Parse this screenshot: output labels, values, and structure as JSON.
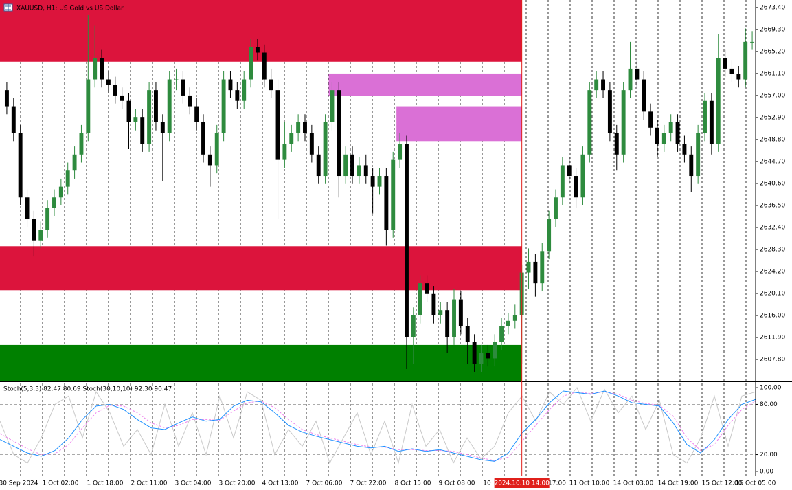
{
  "chart_data": {
    "type": "candlestick",
    "title": "XAUUSD, H1:  US Gold vs US Dollar",
    "ylim": [
      2603.7,
      2674.8
    ],
    "yticks": [
      {
        "value": 2673.4,
        "label": "2673.40"
      },
      {
        "value": 2669.3,
        "label": "2669.30"
      },
      {
        "value": 2665.2,
        "label": "2665.20"
      },
      {
        "value": 2661.1,
        "label": "2661.10"
      },
      {
        "value": 2657,
        "label": "2657.00"
      },
      {
        "value": 2652.9,
        "label": "2652.90"
      },
      {
        "value": 2648.8,
        "label": "2648.80"
      },
      {
        "value": 2644.7,
        "label": "2644.70"
      },
      {
        "value": 2640.6,
        "label": "2640.60"
      },
      {
        "value": 2636.5,
        "label": "2636.50"
      },
      {
        "value": 2632.4,
        "label": "2632.40"
      },
      {
        "value": 2628.3,
        "label": "2628.30"
      },
      {
        "value": 2624.2,
        "label": "2624.20"
      },
      {
        "value": 2620.1,
        "label": "2620.10"
      },
      {
        "value": 2616,
        "label": "2616.00"
      },
      {
        "value": 2611.9,
        "label": "2611.90"
      },
      {
        "value": 2607.8,
        "label": "2607.80"
      }
    ],
    "x_labels": [
      "30 Sep 2024",
      "1 Oct 02:00",
      "1 Oct 18:00",
      "2 Oct 11:00",
      "3 Oct 04:00",
      "3 Oct 20:00",
      "4 Oct 13:00",
      "7 Oct 06:00",
      "7 Oct 22:00",
      "8 Oct 15:00",
      "9 Oct 08:00",
      "10",
      "17:00",
      "11 Oct 10:00",
      "14 Oct 03:00",
      "14 Oct 19:00",
      "15 Oct 12:00",
      "16 Oct 05:00"
    ],
    "cursor": {
      "index": 76,
      "label": "2024.10.10 14:00",
      "color": "#e0201b"
    },
    "bull_color": "#2e8b3e",
    "bear_color": "#000000",
    "zones": [
      {
        "top": 2674.8,
        "bottom": 2663.3,
        "start": 0,
        "color": "#dc143c"
      },
      {
        "top": 2661.1,
        "bottom": 2656.9,
        "start": 48,
        "color": "#da70d6"
      },
      {
        "top": 2655.0,
        "bottom": 2648.5,
        "start": 58,
        "color": "#da70d6"
      },
      {
        "top": 2628.9,
        "bottom": 2620.7,
        "start": 0,
        "color": "#dc143c"
      },
      {
        "top": 2610.5,
        "bottom": 2603.7,
        "start": 0,
        "color": "#008000"
      }
    ],
    "ohlc": [
      [
        2658,
        2659.5,
        2653.5,
        2655
      ],
      [
        2655,
        2656.5,
        2648.5,
        2650
      ],
      [
        2650,
        2651.5,
        2636.5,
        2638
      ],
      [
        2638,
        2639.5,
        2632.5,
        2634
      ],
      [
        2634,
        2635.5,
        2627,
        2630
      ],
      [
        2630,
        2633.5,
        2628.5,
        2632
      ],
      [
        2632,
        2637.5,
        2630.5,
        2636
      ],
      [
        2636,
        2639.5,
        2634.5,
        2638
      ],
      [
        2638,
        2641.5,
        2636.5,
        2640
      ],
      [
        2640,
        2644.5,
        2638.5,
        2643
      ],
      [
        2643,
        2647.5,
        2641.5,
        2646
      ],
      [
        2646,
        2651.5,
        2644.5,
        2650
      ],
      [
        2650,
        2672,
        2648.5,
        2660
      ],
      [
        2660,
        2670,
        2658.5,
        2664
      ],
      [
        2664,
        2665.5,
        2658.5,
        2660
      ],
      [
        2660,
        2661.5,
        2657.5,
        2659
      ],
      [
        2659,
        2660.5,
        2655.5,
        2657
      ],
      [
        2657,
        2658.5,
        2654.5,
        2656
      ],
      [
        2656,
        2657.5,
        2647,
        2652
      ],
      [
        2652,
        2654.5,
        2650.5,
        2653
      ],
      [
        2653,
        2654.5,
        2646.5,
        2648
      ],
      [
        2648,
        2659.5,
        2646.5,
        2658
      ],
      [
        2658,
        2659.5,
        2650.5,
        2652
      ],
      [
        2652,
        2653.5,
        2641,
        2650
      ],
      [
        2650,
        2661.5,
        2648.5,
        2660
      ],
      [
        2660,
        2662,
        2658,
        2660
      ],
      [
        2660,
        2661.5,
        2655.5,
        2657
      ],
      [
        2657,
        2658.5,
        2653.5,
        2655
      ],
      [
        2655,
        2656.5,
        2650.5,
        2652
      ],
      [
        2652,
        2653.5,
        2644.5,
        2646
      ],
      [
        2646,
        2647.5,
        2640,
        2644
      ],
      [
        2644,
        2651.5,
        2642.5,
        2650
      ],
      [
        2650,
        2661.5,
        2648.5,
        2660
      ],
      [
        2660,
        2661.5,
        2656.5,
        2658
      ],
      [
        2658,
        2659.5,
        2654.5,
        2656
      ],
      [
        2656,
        2661.5,
        2654.5,
        2660
      ],
      [
        2660,
        2667.5,
        2658.5,
        2666
      ],
      [
        2666,
        2667.5,
        2663.5,
        2665
      ],
      [
        2665,
        2666.5,
        2658.5,
        2660
      ],
      [
        2660,
        2662,
        2656.5,
        2658
      ],
      [
        2658,
        2660,
        2634,
        2645
      ],
      [
        2645,
        2652,
        2643.5,
        2648
      ],
      [
        2648,
        2651.5,
        2646.5,
        2650
      ],
      [
        2650,
        2653.5,
        2648.5,
        2652
      ],
      [
        2652,
        2653.5,
        2648.5,
        2650
      ],
      [
        2650,
        2651.5,
        2644.5,
        2646
      ],
      [
        2646,
        2647.5,
        2640.5,
        2642
      ],
      [
        2642,
        2653.5,
        2640.5,
        2652
      ],
      [
        2652,
        2659.5,
        2650.5,
        2658
      ],
      [
        2658,
        2659.5,
        2638,
        2642
      ],
      [
        2642,
        2647.5,
        2640.5,
        2646
      ],
      [
        2646,
        2647.5,
        2640.5,
        2642
      ],
      [
        2642,
        2645.5,
        2640.5,
        2644
      ],
      [
        2644,
        2646,
        2640.5,
        2642
      ],
      [
        2642,
        2643.5,
        2635,
        2640
      ],
      [
        2640,
        2643.5,
        2638.5,
        2642
      ],
      [
        2642,
        2643.5,
        2629,
        2632
      ],
      [
        2632,
        2646.5,
        2630.5,
        2645
      ],
      [
        2645,
        2650,
        2643.5,
        2648
      ],
      [
        2648,
        2649.5,
        2606,
        2612
      ],
      [
        2612,
        2617.5,
        2607,
        2616
      ],
      [
        2616,
        2623.5,
        2614.5,
        2622
      ],
      [
        2622,
        2623.5,
        2618.5,
        2620
      ],
      [
        2620,
        2621.5,
        2614.5,
        2616
      ],
      [
        2616,
        2618.5,
        2614.5,
        2617
      ],
      [
        2617,
        2618.5,
        2609,
        2612
      ],
      [
        2612,
        2621,
        2610.5,
        2619
      ],
      [
        2619,
        2620.5,
        2612.5,
        2614
      ],
      [
        2614,
        2615.5,
        2607,
        2611
      ],
      [
        2611,
        2612.5,
        2605.5,
        2607
      ],
      [
        2607,
        2610.5,
        2605.5,
        2609
      ],
      [
        2609,
        2610.5,
        2606.5,
        2608
      ],
      [
        2608,
        2612.5,
        2606.5,
        2611
      ],
      [
        2611,
        2615.5,
        2609.5,
        2614
      ],
      [
        2614,
        2616.5,
        2612.5,
        2615
      ],
      [
        2615,
        2618,
        2613.5,
        2616
      ],
      [
        2616,
        2625.5,
        2607,
        2624
      ],
      [
        2624,
        2628.5,
        2621,
        2626
      ],
      [
        2626,
        2627.5,
        2619.5,
        2622
      ],
      [
        2622,
        2629.5,
        2620.5,
        2628
      ],
      [
        2628,
        2635.5,
        2626.5,
        2634
      ],
      [
        2634,
        2639.5,
        2632.5,
        2638
      ],
      [
        2638,
        2645.5,
        2636.5,
        2644
      ],
      [
        2644,
        2645.5,
        2640.5,
        2642
      ],
      [
        2642,
        2643.5,
        2636,
        2638
      ],
      [
        2638,
        2647.5,
        2636.5,
        2646
      ],
      [
        2646,
        2659.5,
        2644.5,
        2658
      ],
      [
        2658,
        2661.5,
        2656.5,
        2660
      ],
      [
        2660,
        2661.5,
        2656.5,
        2658
      ],
      [
        2658,
        2659.5,
        2648.5,
        2650
      ],
      [
        2650,
        2651.5,
        2643,
        2646
      ],
      [
        2646,
        2659.5,
        2644.5,
        2658
      ],
      [
        2658,
        2667,
        2656.5,
        2662
      ],
      [
        2662,
        2663.5,
        2658.5,
        2660
      ],
      [
        2660,
        2661.5,
        2652.5,
        2654
      ],
      [
        2654,
        2655.5,
        2649.5,
        2651
      ],
      [
        2651,
        2652.5,
        2645.5,
        2648
      ],
      [
        2648,
        2651.5,
        2646.5,
        2650
      ],
      [
        2650,
        2653.5,
        2648.5,
        2652
      ],
      [
        2652,
        2653.5,
        2646.5,
        2648
      ],
      [
        2648,
        2649.5,
        2644.5,
        2646
      ],
      [
        2646,
        2647.5,
        2639,
        2642
      ],
      [
        2642,
        2651.5,
        2640.5,
        2650
      ],
      [
        2650,
        2657.5,
        2648.5,
        2656
      ],
      [
        2656,
        2657.5,
        2646,
        2648
      ],
      [
        2648,
        2668.5,
        2646.5,
        2664
      ],
      [
        2664,
        2665.5,
        2660.5,
        2662
      ],
      [
        2662,
        2663.5,
        2659.5,
        2661
      ],
      [
        2661,
        2662.5,
        2658.5,
        2660
      ],
      [
        2660,
        2669.5,
        2658.5,
        2667
      ],
      [
        2667,
        2669,
        2665.5,
        2667
      ]
    ],
    "indicator": {
      "label": "Stoch(5,3,3) 82.47 80.69 Stoch(30,10,10) 92.30 90.47",
      "ylim": [
        -5,
        105
      ],
      "yticks": [
        {
          "value": 100,
          "label": "100.00"
        },
        {
          "value": 80,
          "label": "80.00"
        },
        {
          "value": 20,
          "label": "20.00"
        },
        {
          "value": 0,
          "label": "0.00"
        }
      ],
      "levels": [
        80,
        20
      ],
      "series": [
        {
          "color": "#c8c8c8",
          "dashed": false,
          "values": [
            60,
            20,
            10,
            40,
            80,
            90,
            40,
            95,
            70,
            30,
            50,
            20,
            80,
            30,
            70,
            20,
            90,
            40,
            95,
            85,
            20,
            50,
            30,
            60,
            10,
            40,
            70,
            20,
            60,
            10,
            80,
            30,
            50,
            10,
            40,
            15,
            30,
            70,
            90,
            60,
            95,
            80,
            100,
            60,
            98,
            70,
            90,
            50,
            85,
            20,
            10,
            40,
            90,
            30,
            90,
            95
          ]
        },
        {
          "color": "#ee82ee",
          "dashed": true,
          "values": [
            45,
            36,
            27,
            20,
            21,
            32,
            52,
            70,
            79,
            78,
            70,
            58,
            52,
            55,
            62,
            62,
            61,
            72,
            82,
            84,
            76,
            62,
            50,
            44,
            40,
            36,
            32,
            29,
            29,
            26,
            26,
            25,
            25,
            24,
            20,
            16,
            13,
            17,
            36,
            55,
            74,
            90,
            95,
            93,
            95,
            92,
            85,
            81,
            79,
            66,
            40,
            25,
            32,
            55,
            74,
            84
          ]
        },
        {
          "color": "#1e90ff",
          "dashed": false,
          "values": [
            38,
            30,
            22,
            18,
            25,
            40,
            62,
            78,
            80,
            74,
            62,
            52,
            50,
            58,
            65,
            60,
            62,
            78,
            85,
            83,
            70,
            55,
            47,
            42,
            38,
            34,
            30,
            28,
            30,
            24,
            27,
            24,
            26,
            22,
            18,
            14,
            12,
            22,
            46,
            62,
            82,
            96,
            94,
            92,
            96,
            90,
            82,
            80,
            78,
            58,
            32,
            22,
            38,
            62,
            80,
            86
          ]
        }
      ]
    }
  }
}
